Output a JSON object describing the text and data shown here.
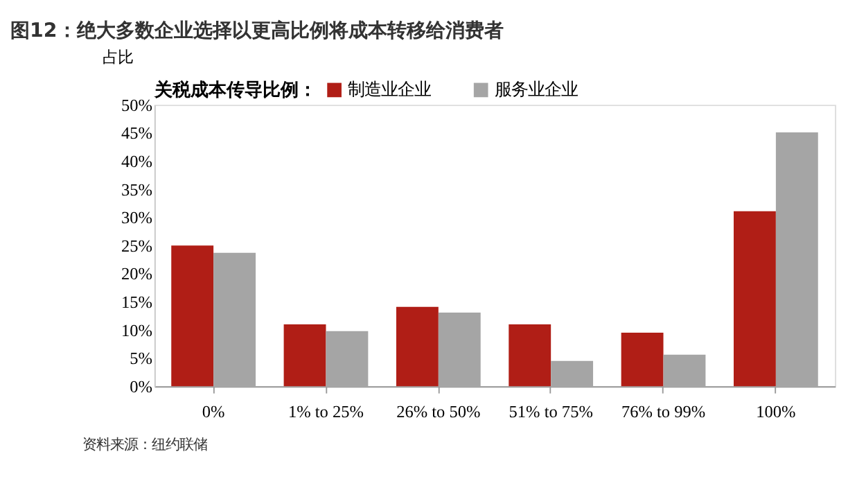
{
  "chart_data": {
    "type": "bar",
    "title": "图12：绝大多数企业选择以更高比例将成本转移给消费者",
    "ylabel": "占比",
    "legend_title": "关税成本传导比例：",
    "categories": [
      "0%",
      "1% to 25%",
      "26% to 50%",
      "51% to 75%",
      "76% to 99%",
      "100%"
    ],
    "series": [
      {
        "name": "制造业企业",
        "color": "#b01e16",
        "values": [
          25.0,
          11.0,
          14.1,
          11.0,
          9.5,
          31.1
        ]
      },
      {
        "name": "服务业企业",
        "color": "#a5a5a5",
        "values": [
          23.7,
          9.8,
          13.1,
          4.5,
          5.6,
          45.1
        ]
      }
    ],
    "ylim": [
      0,
      50
    ],
    "yticks": [
      {
        "value": 0,
        "label": "0%"
      },
      {
        "value": 5,
        "label": "5%"
      },
      {
        "value": 10,
        "label": "10%"
      },
      {
        "value": 15,
        "label": "15%"
      },
      {
        "value": 20,
        "label": "20%"
      },
      {
        "value": 25,
        "label": "25%"
      },
      {
        "value": 30,
        "label": "30%"
      },
      {
        "value": 35,
        "label": "35%"
      },
      {
        "value": 40,
        "label": "40%"
      },
      {
        "value": 45,
        "label": "45%"
      },
      {
        "value": 50,
        "label": "50%"
      }
    ],
    "grid": false,
    "legend": "top",
    "annotations": [
      "资料来源：纽约联储"
    ]
  }
}
